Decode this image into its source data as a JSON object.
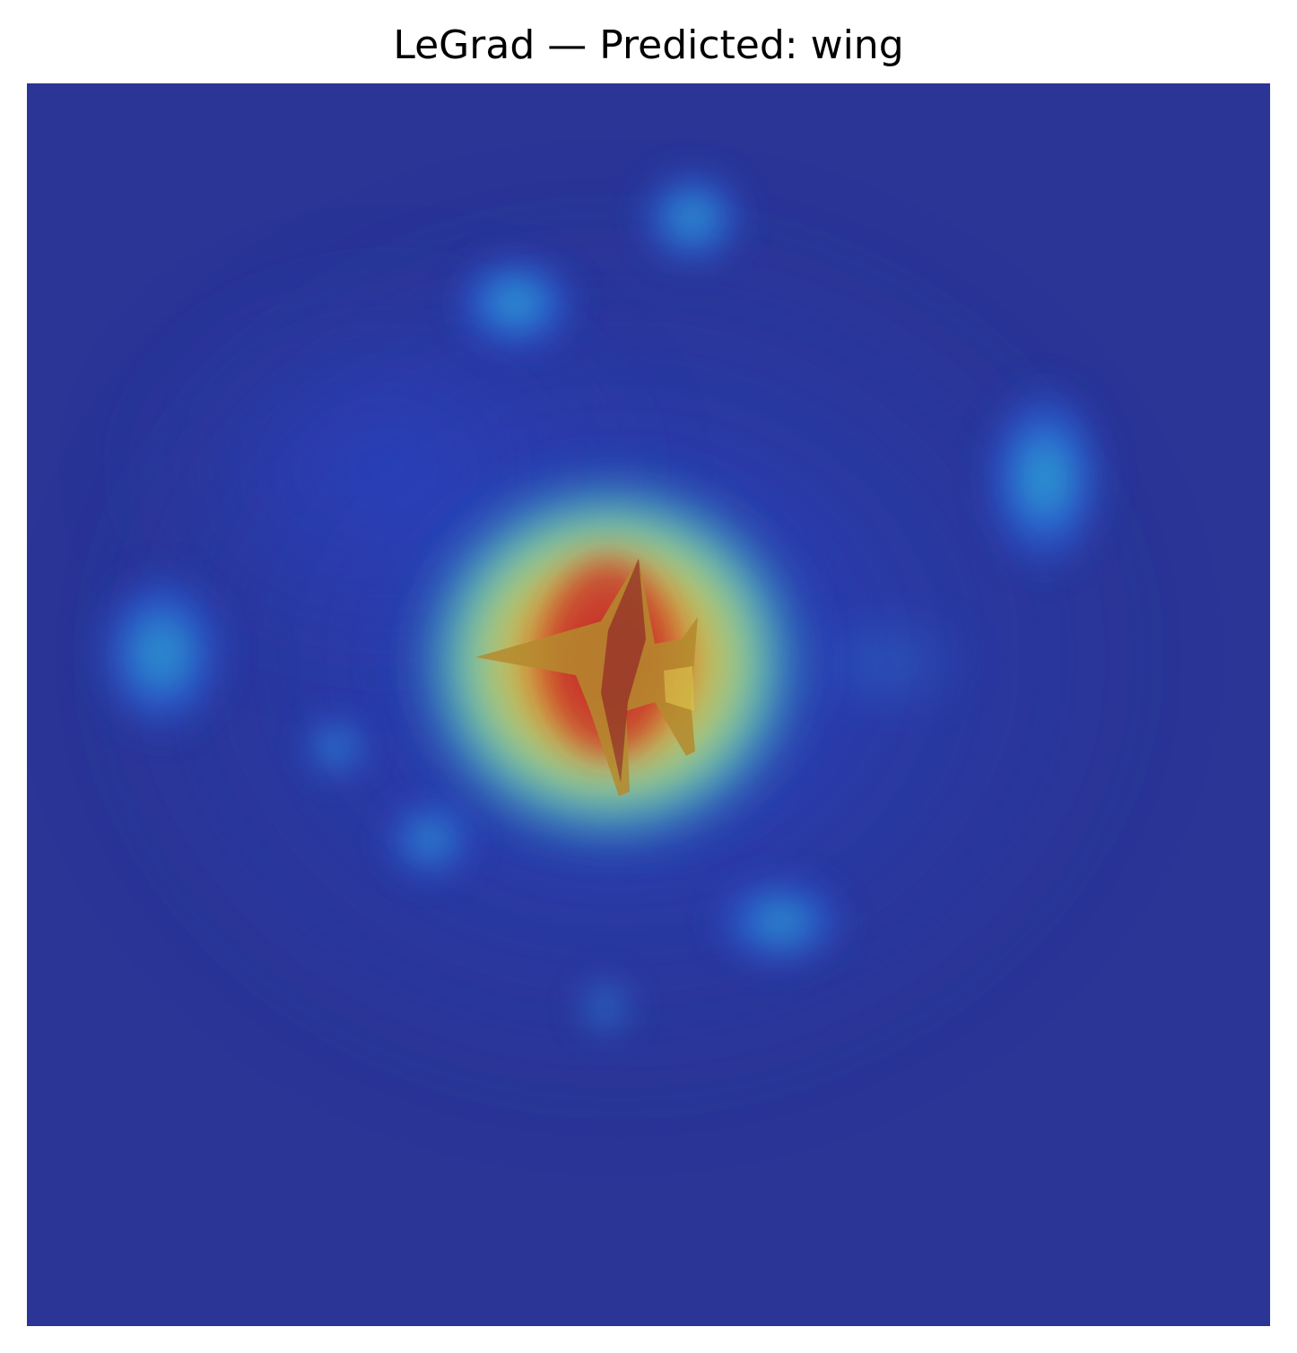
{
  "figure": {
    "title": "LeGrad — Predicted: wing"
  },
  "image": {
    "subject": "aircraft-silhouette",
    "overlay": "attribution-heatmap",
    "colormap": "jet",
    "colors": {
      "background_low": "#2a3596",
      "mid_cyan": "#27c3d6",
      "warm_yellow": "#d7c23c",
      "hot_red": "#c4282a"
    }
  }
}
